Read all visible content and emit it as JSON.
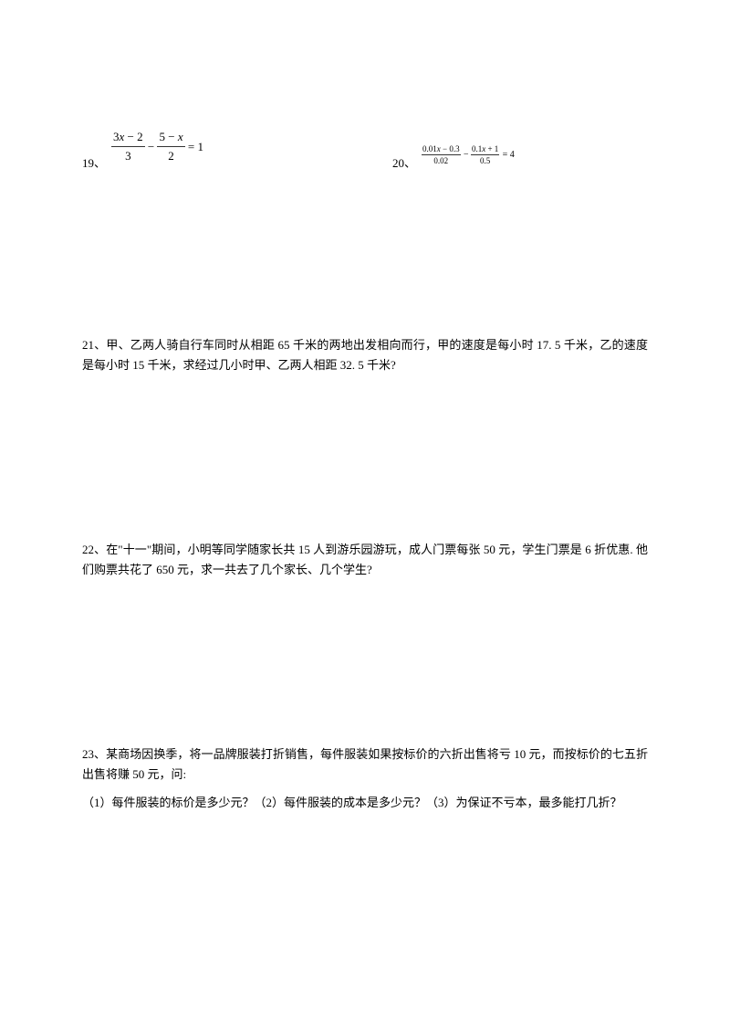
{
  "q19": {
    "number": "19、",
    "frac1_num": "3x − 2",
    "frac1_den": "3",
    "minus": " − ",
    "frac2_num": "5 − x",
    "frac2_den": "2",
    "equals": " = 1"
  },
  "q20": {
    "number": "20、",
    "frac1_num": "0.01x − 0.3",
    "frac1_den": "0.02",
    "minus": " − ",
    "frac2_num": "0.1x + 1",
    "frac2_den": "0.5",
    "equals": " = 4"
  },
  "q21": {
    "text": "21、甲、乙两人骑自行车同时从相距 65 千米的两地出发相向而行，甲的速度是每小时 17. 5 千米，乙的速度是每小时 15 千米，求经过几小时甲、乙两人相距 32. 5 千米?"
  },
  "q22": {
    "text": "22、在\"十一\"期间，小明等同学随家长共 15 人到游乐园游玩，成人门票每张 50 元，学生门票是 6 折优惠. 他们购票共花了 650 元，求一共去了几个家长、几个学生?"
  },
  "q23": {
    "text": "23、某商场因换季，将一品牌服装打折销售，每件服装如果按标价的六折出售将亏 10 元，而按标价的七五折出售将赚 50 元，问:",
    "sub": "（1）每件服装的标价是多少元？（2）每件服装的成本是多少元？（3）为保证不亏本，最多能打几折？"
  },
  "style": {
    "background_color": "#ffffff",
    "text_color": "#000000",
    "body_fontsize": 13,
    "equation_small_fontsize": 10
  }
}
